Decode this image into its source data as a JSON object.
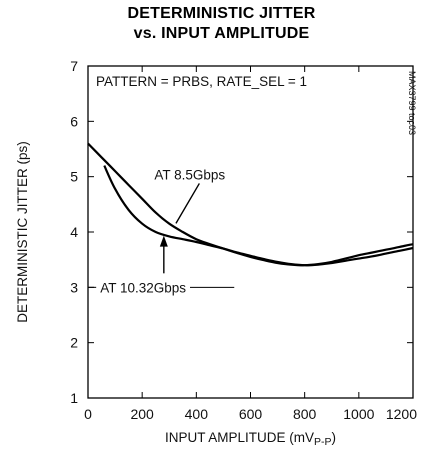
{
  "chart_data": {
    "type": "line",
    "title": "DETERMINISTIC JITTER",
    "subtitle": "vs. INPUT AMPLITUDE",
    "xlabel": "INPUT AMPLITUDE (mV",
    "xlabel_sub": "P-P",
    "xlabel_close": ")",
    "ylabel": "DETERMINISTIC JITTER (ps)",
    "xlim": [
      0,
      1200
    ],
    "ylim": [
      1,
      7
    ],
    "xticks": [
      "0",
      "200",
      "400",
      "600",
      "800",
      "1000",
      "1200"
    ],
    "yticks": [
      "1",
      "2",
      "3",
      "4",
      "5",
      "6",
      "7"
    ],
    "grid": false,
    "condition_text": "PATTERN = PRBS, RATE_SEL = 1",
    "part_code": "MAX3799 toc03",
    "series": [
      {
        "name": "AT 8.5Gbps",
        "x": [
          0,
          50,
          100,
          150,
          200,
          250,
          300,
          350,
          400,
          450,
          500,
          550,
          600,
          650,
          700,
          750,
          800,
          850,
          900,
          950,
          1000,
          1050,
          1100,
          1150,
          1200
        ],
        "y": [
          5.6,
          5.35,
          5.1,
          4.85,
          4.6,
          4.35,
          4.15,
          4.0,
          3.87,
          3.78,
          3.7,
          3.62,
          3.55,
          3.49,
          3.44,
          3.41,
          3.4,
          3.42,
          3.46,
          3.52,
          3.58,
          3.63,
          3.68,
          3.73,
          3.78
        ]
      },
      {
        "name": "AT 10.32Gbps",
        "x": [
          60,
          100,
          150,
          200,
          250,
          300,
          350,
          400,
          450,
          500,
          550,
          600,
          650,
          700,
          750,
          800,
          850,
          900,
          950,
          1000,
          1050,
          1100,
          1150,
          1200
        ],
        "y": [
          5.2,
          4.78,
          4.4,
          4.15,
          4.0,
          3.92,
          3.87,
          3.82,
          3.76,
          3.7,
          3.63,
          3.57,
          3.51,
          3.46,
          3.42,
          3.4,
          3.41,
          3.44,
          3.48,
          3.52,
          3.56,
          3.61,
          3.66,
          3.71
        ]
      }
    ],
    "annotations": [
      {
        "text": "AT 8.5Gbps",
        "series": 0,
        "at_x": 310
      },
      {
        "text": "AT 10.32Gbps",
        "series": 1,
        "at_x": 280
      }
    ]
  }
}
